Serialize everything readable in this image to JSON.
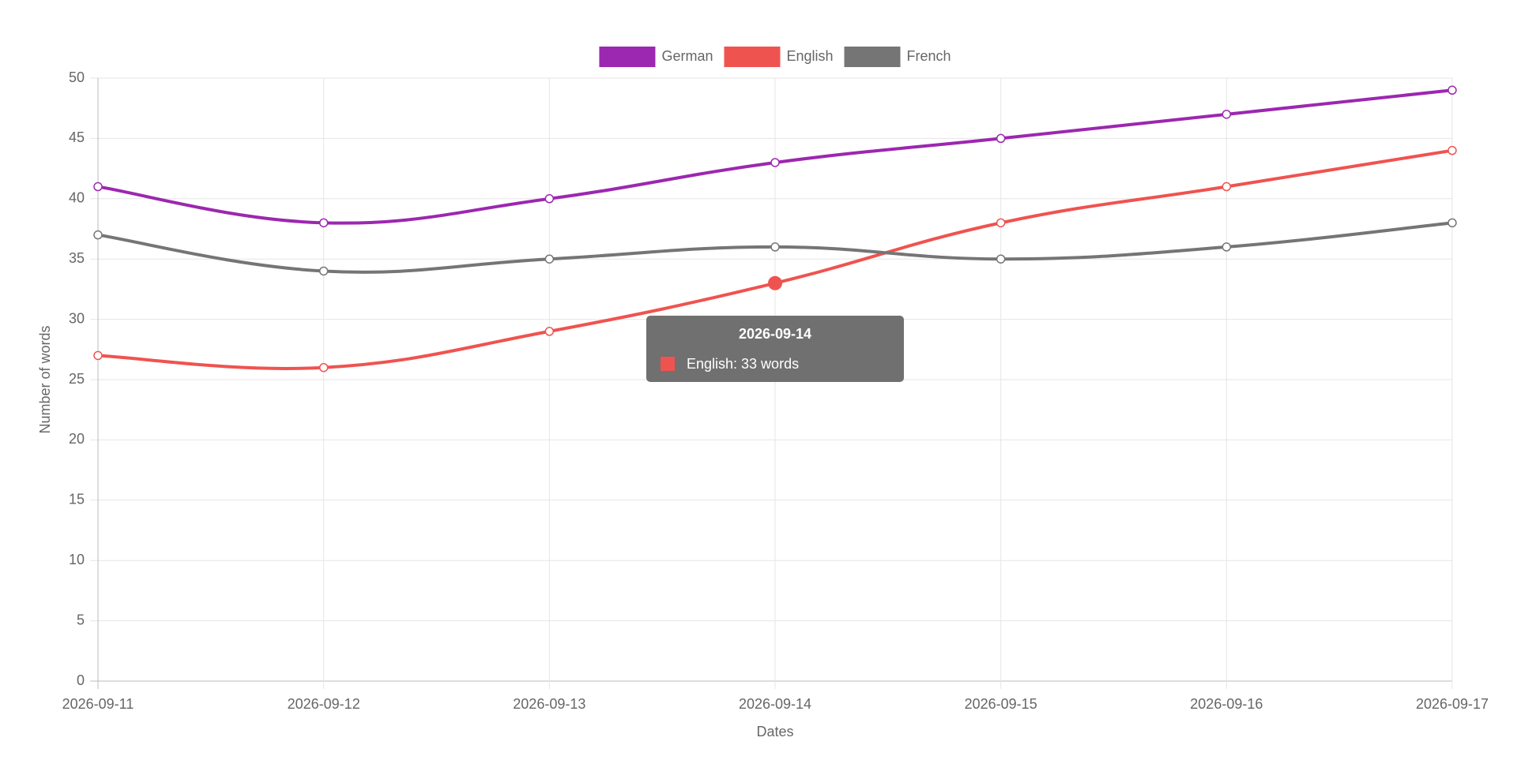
{
  "chart_data": {
    "type": "line",
    "x_label": "Dates",
    "y_label": "Number of words",
    "categories": [
      "2026-09-11",
      "2026-09-12",
      "2026-09-13",
      "2026-09-14",
      "2026-09-15",
      "2026-09-16",
      "2026-09-17"
    ],
    "series": [
      {
        "name": "German",
        "color": "#9c27b0",
        "values": [
          41,
          38,
          40,
          43,
          45,
          47,
          49
        ]
      },
      {
        "name": "English",
        "color": "#ef5350",
        "values": [
          27,
          26,
          29,
          33,
          38,
          41,
          44
        ]
      },
      {
        "name": "French",
        "color": "#757575",
        "values": [
          37,
          34,
          35,
          36,
          35,
          36,
          38
        ]
      }
    ],
    "ylim": [
      0,
      50
    ],
    "yticks": [
      0,
      5,
      10,
      15,
      20,
      25,
      30,
      35,
      40,
      45,
      50
    ],
    "grid": true,
    "legend": "top",
    "tooltip": {
      "title": "2026-09-14",
      "text": "English: 33 words"
    }
  }
}
